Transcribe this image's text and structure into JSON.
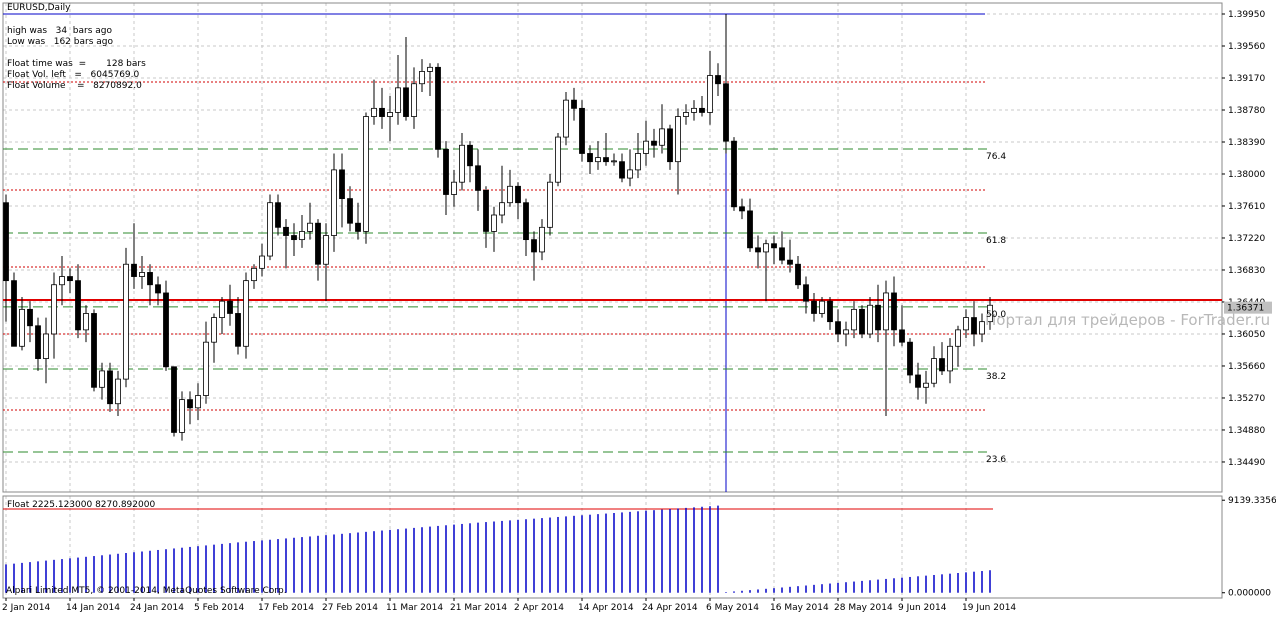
{
  "chart_data": [
    {
      "type": "candlestick",
      "title": "EURUSD,Daily",
      "info": [
        "high was   34  bars ago",
        "Low was   162 bars ago",
        "Float time was  =       128 bars",
        "Float Vol. left   =   6045769.0",
        "Float Volume    =   8270892.0"
      ],
      "watermark": "Портал для трейдеров - ForTrader.ru",
      "categories": [
        "2 Jan 2014",
        null,
        null,
        null,
        null,
        null,
        null,
        null,
        "14 Jan 2014",
        null,
        null,
        null,
        null,
        null,
        null,
        null,
        "24 Jan 2014",
        null,
        null,
        null,
        null,
        null,
        null,
        null,
        "5 Feb 2014",
        null,
        null,
        null,
        null,
        null,
        null,
        null,
        "17 Feb 2014",
        null,
        null,
        null,
        null,
        null,
        null,
        null,
        "27 Feb 2014",
        null,
        null,
        null,
        null,
        null,
        null,
        null,
        "11 Mar 2014",
        null,
        null,
        null,
        null,
        null,
        null,
        null,
        "21 Mar 2014",
        null,
        null,
        null,
        null,
        null,
        null,
        null,
        "2 Apr 2014",
        null,
        null,
        null,
        null,
        null,
        null,
        null,
        "14 Apr 2014",
        null,
        null,
        null,
        null,
        null,
        null,
        null,
        "24 Apr 2014",
        null,
        null,
        null,
        null,
        null,
        null,
        null,
        "6 May 2014",
        null,
        null,
        null,
        null,
        null,
        null,
        null,
        "16 May 2014",
        null,
        null,
        null,
        null,
        null,
        null,
        null,
        "28 May 2014",
        null,
        null,
        null,
        null,
        null,
        null,
        null,
        "9 Jun 2014",
        null,
        null,
        null,
        null,
        null,
        null,
        null,
        "19 Jun 2014",
        null,
        null,
        null
      ],
      "ohlc": [
        [
          1.3765,
          1.3775,
          1.362,
          1.367
        ],
        [
          1.367,
          1.368,
          1.359,
          1.359
        ],
        [
          1.359,
          1.365,
          1.3585,
          1.3635
        ],
        [
          1.3635,
          1.3645,
          1.3595,
          1.3615
        ],
        [
          1.3615,
          1.3625,
          1.356,
          1.3575
        ],
        [
          1.3575,
          1.3625,
          1.3545,
          1.3605
        ],
        [
          1.3605,
          1.368,
          1.3575,
          1.3665
        ],
        [
          1.3665,
          1.37,
          1.364,
          1.3675
        ],
        [
          1.3675,
          1.3685,
          1.3655,
          1.367
        ],
        [
          1.367,
          1.369,
          1.36,
          1.361
        ],
        [
          1.361,
          1.364,
          1.3595,
          1.363
        ],
        [
          1.363,
          1.3635,
          1.3535,
          1.354
        ],
        [
          1.354,
          1.357,
          1.3525,
          1.356
        ],
        [
          1.356,
          1.357,
          1.351,
          1.352
        ],
        [
          1.352,
          1.356,
          1.3505,
          1.355
        ],
        [
          1.355,
          1.371,
          1.354,
          1.369
        ],
        [
          1.369,
          1.374,
          1.366,
          1.3675
        ],
        [
          1.3675,
          1.37,
          1.366,
          1.368
        ],
        [
          1.368,
          1.369,
          1.364,
          1.3665
        ],
        [
          1.3665,
          1.3675,
          1.364,
          1.3655
        ],
        [
          1.3655,
          1.367,
          1.356,
          1.3565
        ],
        [
          1.3565,
          1.3565,
          1.348,
          1.3485
        ],
        [
          1.3485,
          1.3535,
          1.3475,
          1.3525
        ],
        [
          1.3525,
          1.3535,
          1.3495,
          1.3515
        ],
        [
          1.3515,
          1.3545,
          1.35,
          1.353
        ],
        [
          1.353,
          1.362,
          1.352,
          1.3595
        ],
        [
          1.3595,
          1.363,
          1.357,
          1.3625
        ],
        [
          1.3625,
          1.365,
          1.3605,
          1.3645
        ],
        [
          1.3645,
          1.3665,
          1.3615,
          1.363
        ],
        [
          1.363,
          1.365,
          1.358,
          1.359
        ],
        [
          1.359,
          1.368,
          1.3575,
          1.367
        ],
        [
          1.367,
          1.369,
          1.366,
          1.3685
        ],
        [
          1.3685,
          1.3715,
          1.3675,
          1.37
        ],
        [
          1.37,
          1.3775,
          1.3695,
          1.3765
        ],
        [
          1.3765,
          1.3775,
          1.3725,
          1.3735
        ],
        [
          1.3735,
          1.3745,
          1.3685,
          1.3725
        ],
        [
          1.3725,
          1.374,
          1.37,
          1.372
        ],
        [
          1.372,
          1.375,
          1.371,
          1.373
        ],
        [
          1.373,
          1.3765,
          1.372,
          1.374
        ],
        [
          1.374,
          1.3745,
          1.367,
          1.369
        ],
        [
          1.369,
          1.374,
          1.3645,
          1.3725
        ],
        [
          1.3725,
          1.3825,
          1.3705,
          1.3805
        ],
        [
          1.3805,
          1.3825,
          1.3735,
          1.377
        ],
        [
          1.377,
          1.3785,
          1.373,
          1.374
        ],
        [
          1.374,
          1.3765,
          1.372,
          1.373
        ],
        [
          1.373,
          1.3875,
          1.3715,
          1.387
        ],
        [
          1.387,
          1.3915,
          1.386,
          1.388
        ],
        [
          1.388,
          1.3905,
          1.3855,
          1.387
        ],
        [
          1.387,
          1.3895,
          1.384,
          1.3875
        ],
        [
          1.3875,
          1.3945,
          1.386,
          1.3905
        ],
        [
          1.3905,
          1.3967,
          1.3865,
          1.387
        ],
        [
          1.387,
          1.393,
          1.3855,
          1.391
        ],
        [
          1.391,
          1.394,
          1.39,
          1.3925
        ],
        [
          1.3925,
          1.3935,
          1.3895,
          1.393
        ],
        [
          1.393,
          1.3935,
          1.382,
          1.383
        ],
        [
          1.383,
          1.384,
          1.375,
          1.3775
        ],
        [
          1.3775,
          1.3805,
          1.376,
          1.379
        ],
        [
          1.379,
          1.385,
          1.378,
          1.3835
        ],
        [
          1.3835,
          1.384,
          1.379,
          1.381
        ],
        [
          1.381,
          1.383,
          1.3755,
          1.378
        ],
        [
          1.378,
          1.3785,
          1.371,
          1.373
        ],
        [
          1.373,
          1.376,
          1.3705,
          1.375
        ],
        [
          1.375,
          1.381,
          1.374,
          1.3765
        ],
        [
          1.3765,
          1.3805,
          1.376,
          1.3785
        ],
        [
          1.3785,
          1.379,
          1.3745,
          1.3765
        ],
        [
          1.3765,
          1.377,
          1.37,
          1.372
        ],
        [
          1.372,
          1.373,
          1.367,
          1.3705
        ],
        [
          1.3705,
          1.3745,
          1.3695,
          1.3735
        ],
        [
          1.3735,
          1.38,
          1.3725,
          1.379
        ],
        [
          1.379,
          1.385,
          1.3785,
          1.3845
        ],
        [
          1.3845,
          1.39,
          1.3835,
          1.389
        ],
        [
          1.389,
          1.3905,
          1.3865,
          1.388
        ],
        [
          1.388,
          1.389,
          1.3815,
          1.3825
        ],
        [
          1.3825,
          1.3835,
          1.38,
          1.3815
        ],
        [
          1.3815,
          1.384,
          1.3805,
          1.382
        ],
        [
          1.382,
          1.385,
          1.381,
          1.3815
        ],
        [
          1.3815,
          1.3825,
          1.381,
          1.3816
        ],
        [
          1.3815,
          1.3825,
          1.379,
          1.3795
        ],
        [
          1.3795,
          1.383,
          1.3785,
          1.3805
        ],
        [
          1.3805,
          1.385,
          1.3795,
          1.3825
        ],
        [
          1.3825,
          1.3865,
          1.381,
          1.384
        ],
        [
          1.384,
          1.3855,
          1.382,
          1.3835
        ],
        [
          1.3835,
          1.3885,
          1.3825,
          1.3855
        ],
        [
          1.3855,
          1.386,
          1.3805,
          1.3815
        ],
        [
          1.3815,
          1.388,
          1.3775,
          1.387
        ],
        [
          1.387,
          1.3885,
          1.386,
          1.3875
        ],
        [
          1.3875,
          1.389,
          1.3865,
          1.388
        ],
        [
          1.388,
          1.3895,
          1.387,
          1.3875
        ],
        [
          1.3875,
          1.395,
          1.386,
          1.392
        ],
        [
          1.392,
          1.3935,
          1.3895,
          1.391
        ],
        [
          1.391,
          1.3995,
          1.3825,
          1.384
        ],
        [
          1.384,
          1.3845,
          1.3755,
          1.376
        ],
        [
          1.376,
          1.377,
          1.3745,
          1.3755
        ],
        [
          1.3755,
          1.377,
          1.3705,
          1.371
        ],
        [
          1.371,
          1.3725,
          1.3685,
          1.3705
        ],
        [
          1.3705,
          1.372,
          1.3645,
          1.3715
        ],
        [
          1.3715,
          1.3725,
          1.369,
          1.371
        ],
        [
          1.371,
          1.373,
          1.369,
          1.3695
        ],
        [
          1.3695,
          1.372,
          1.368,
          1.369
        ],
        [
          1.369,
          1.37,
          1.366,
          1.3665
        ],
        [
          1.3665,
          1.3675,
          1.363,
          1.3645
        ],
        [
          1.3645,
          1.3655,
          1.362,
          1.363
        ],
        [
          1.363,
          1.365,
          1.3625,
          1.3645
        ],
        [
          1.3645,
          1.365,
          1.361,
          1.362
        ],
        [
          1.362,
          1.3635,
          1.3595,
          1.3605
        ],
        [
          1.3605,
          1.362,
          1.359,
          1.361
        ],
        [
          1.361,
          1.3645,
          1.36,
          1.3635
        ],
        [
          1.3635,
          1.364,
          1.36,
          1.3605
        ],
        [
          1.3605,
          1.365,
          1.36,
          1.364
        ],
        [
          1.364,
          1.3665,
          1.3595,
          1.361
        ],
        [
          1.361,
          1.367,
          1.3505,
          1.3655
        ],
        [
          1.3655,
          1.3675,
          1.359,
          1.361
        ],
        [
          1.361,
          1.364,
          1.359,
          1.3595
        ],
        [
          1.3595,
          1.36,
          1.3545,
          1.3555
        ],
        [
          1.3555,
          1.357,
          1.3525,
          1.354
        ],
        [
          1.354,
          1.356,
          1.352,
          1.3545
        ],
        [
          1.3545,
          1.359,
          1.354,
          1.3575
        ],
        [
          1.3575,
          1.3595,
          1.3555,
          1.356
        ],
        [
          1.356,
          1.36,
          1.3545,
          1.359
        ],
        [
          1.359,
          1.3615,
          1.3565,
          1.361
        ],
        [
          1.361,
          1.3635,
          1.36,
          1.3625
        ],
        [
          1.3625,
          1.3645,
          1.359,
          1.3605
        ],
        [
          1.3605,
          1.363,
          1.3595,
          1.362
        ],
        [
          1.362,
          1.365,
          1.361,
          1.364
        ]
      ],
      "ylim": [
        1.34124,
        1.40084
      ],
      "yticks": [
        {
          "value": 1.3995,
          "label": "1.39950"
        },
        {
          "value": 1.3956,
          "label": "1.39560"
        },
        {
          "value": 1.3917,
          "label": "1.39170"
        },
        {
          "value": 1.3878,
          "label": "1.38780"
        },
        {
          "value": 1.3839,
          "label": "1.38390"
        },
        {
          "value": 1.38,
          "label": "1.38000"
        },
        {
          "value": 1.3761,
          "label": "1.37610"
        },
        {
          "value": 1.3722,
          "label": "1.37220"
        },
        {
          "value": 1.3683,
          "label": "1.36830"
        },
        {
          "value": 1.3644,
          "label": "1.36440"
        },
        {
          "value": 1.3605,
          "label": "1.36050"
        },
        {
          "value": 1.3566,
          "label": "1.35660"
        },
        {
          "value": 1.3527,
          "label": "1.35270"
        },
        {
          "value": 1.3488,
          "label": "1.34880"
        },
        {
          "value": 1.3449,
          "label": "1.34490"
        }
      ],
      "levels": [
        {
          "value": 1.38305,
          "label": "76.4"
        },
        {
          "value": 1.37281,
          "label": "61.8"
        },
        {
          "value": 1.3638,
          "label": "50.0"
        },
        {
          "value": 1.35623,
          "label": "38.2"
        },
        {
          "value": 1.34612,
          "label": "23.6"
        }
      ],
      "dotted_levels": [
        1.39121,
        1.37805,
        1.36866,
        1.3605,
        1.35124
      ],
      "high_line": 1.3995,
      "red_line": 1.36464,
      "current_price": {
        "value": 1.36371,
        "label": "1.36371"
      },
      "grid": true
    },
    {
      "type": "bar",
      "title": "Float 2225.123000 8270.892000",
      "color": "#0000c8",
      "footer": "Alpari Limited MT5, © 2001-2014, MetaQuotes Software Corp.",
      "values": [
        2800,
        2875,
        2950,
        3025,
        3100,
        3175,
        3250,
        3325,
        3400,
        3475,
        3550,
        3625,
        3700,
        3775,
        3850,
        3925,
        4000,
        4075,
        4150,
        4225,
        4300,
        4375,
        4450,
        4525,
        4600,
        4675,
        4750,
        4825,
        4900,
        4975,
        5040,
        5105,
        5170,
        5235,
        5300,
        5365,
        5430,
        5495,
        5560,
        5625,
        5690,
        5755,
        5820,
        5885,
        5950,
        6015,
        6080,
        6145,
        6210,
        6275,
        6340,
        6405,
        6470,
        6535,
        6600,
        6665,
        6730,
        6795,
        6860,
        6925,
        6981,
        7037,
        7093,
        7149,
        7205,
        7261,
        7317,
        7373,
        7429,
        7485,
        7541,
        7597,
        7653,
        7709,
        7765,
        7821,
        7877,
        7933,
        7989,
        8045,
        8101,
        8157,
        8213,
        8269,
        8325,
        8381,
        8437,
        8493,
        8549,
        8605,
        65,
        130,
        195,
        260,
        325,
        390,
        455,
        520,
        585,
        650,
        715,
        780,
        845,
        910,
        975,
        1040,
        1105,
        1170,
        1235,
        1300,
        1365,
        1430,
        1495,
        1560,
        1625,
        1690,
        1755,
        1820,
        1885,
        1950,
        2015,
        2080,
        2145,
        2225
      ],
      "ylim": [
        -519,
        9555
      ],
      "yticks": [
        9139.33564,
        {
          "value": 0,
          "label": "0.000000"
        }
      ],
      "float_line": 8270.892
    }
  ]
}
